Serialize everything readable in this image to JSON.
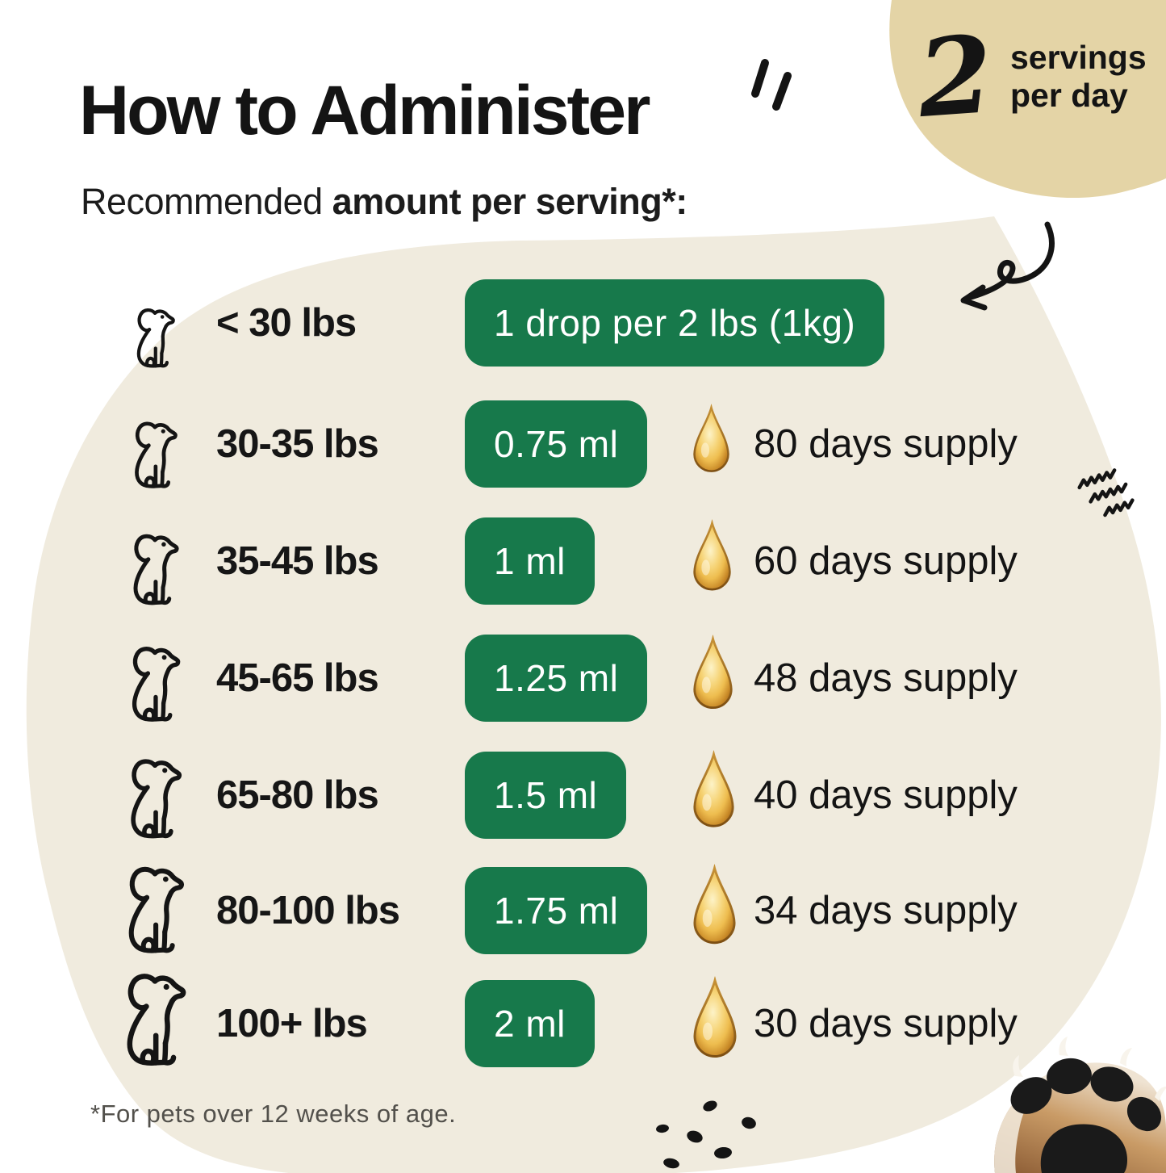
{
  "header": {
    "title": "How to Administer",
    "subtitle_prefix": "Recommended ",
    "subtitle_bold": "amount per serving*:"
  },
  "servings_badge": {
    "number": "2",
    "line1": "servings",
    "line2": "per day"
  },
  "rows": [
    {
      "weight": "< 30 lbs",
      "dose": "1 drop per 2 lbs (1kg)",
      "supply": ""
    },
    {
      "weight": "30-35 lbs",
      "dose": "0.75 ml",
      "supply": "80 days supply"
    },
    {
      "weight": "35-45 lbs",
      "dose": "1 ml",
      "supply": "60 days supply"
    },
    {
      "weight": "45-65 lbs",
      "dose": "1.25 ml",
      "supply": "48 days supply"
    },
    {
      "weight": "65-80 lbs",
      "dose": "1.5 ml",
      "supply": "40 days supply"
    },
    {
      "weight": "80-100 lbs",
      "dose": "1.75 ml",
      "supply": "34 days supply"
    },
    {
      "weight": "100+ lbs",
      "dose": "2 ml",
      "supply": "30 days supply"
    }
  ],
  "footnote": "*For pets over 12 weeks of age.",
  "colors": {
    "green": "#17794B",
    "cream_blob": "#F0EBDE",
    "tan_blob": "#E4D4A6",
    "ink": "#141414",
    "footnote_gray": "#52504B",
    "drop_gold_light": "#FDF3C8",
    "drop_gold_mid": "#EEBD4F",
    "drop_gold_dark": "#A66A1A"
  },
  "icons": {
    "dog": "dog-line-art-icon",
    "drop": "oil-drop-icon",
    "arrow": "hand-drawn-arrow-icon",
    "squiggle": "squiggle-icon",
    "specks": "ink-specks-icon",
    "paw": "dog-paw-photo",
    "ticks": "emphasis-ticks-icon"
  }
}
